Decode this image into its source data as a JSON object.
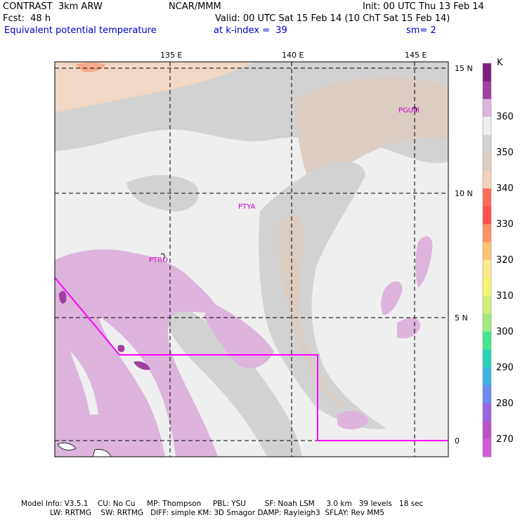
{
  "header": {
    "model": "CONTRAST  3km ARW",
    "org": "NCAR/MMM",
    "init": "Init: 00 UTC Thu 13 Feb 14",
    "fcst": "Fcst:  48 h",
    "valid": "Valid: 00 UTC Sat 15 Feb 14 (10 ChT Sat 15 Feb 14)",
    "field": "Equivalent potential temperature",
    "level": "at k-index =  39",
    "sm": "sm= 2"
  },
  "map": {
    "lon_labels": [
      "135 E",
      "140 E",
      "145 E"
    ],
    "lat_labels": [
      "15 N",
      "10 N",
      "5 N",
      "0"
    ],
    "stations": [
      "PGUM",
      "PTYA",
      "PTRO"
    ],
    "boundary_color": "#ff00ff",
    "station_color": "#cc00cc"
  },
  "colorbar": {
    "unit": "K",
    "tick_labels": [
      "360",
      "350",
      "340",
      "330",
      "320",
      "310",
      "300",
      "290",
      "280",
      "270"
    ],
    "colors_top_to_bottom": [
      "#7e1d7e",
      "#a040a0",
      "#dcb4dc",
      "#efefef",
      "#d2d2d2",
      "#dccdc3",
      "#f5d2b9",
      "#ff6a5a",
      "#ff5050",
      "#ff9164",
      "#ffc373",
      "#ffe68c",
      "#f5f56e",
      "#d2f078",
      "#a0eb7d",
      "#46e68c",
      "#28d2b4",
      "#3cb4e6",
      "#6e8cf0",
      "#9b64e1",
      "#be50c8",
      "#d25ad7"
    ]
  },
  "footer": {
    "line1": "Model Info: V3.5.1    CU: No Cu     MP: Thompson     PBL: YSU        SF: Noah LSM     3.0 km   39 levels   18 sec",
    "line2": "LW: RRTMG    SW: RRTMG   DIFF: simple KM: 3D Smagor DAMP: Rayleigh3  SFLAY: Rev MM5"
  }
}
